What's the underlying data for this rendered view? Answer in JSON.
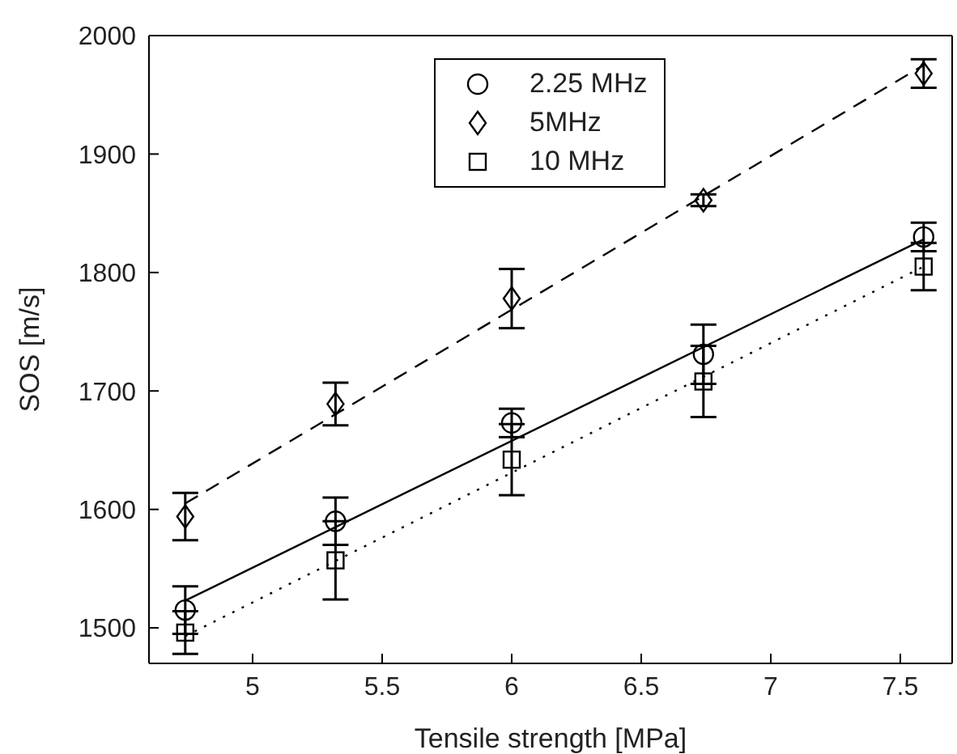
{
  "chart_data": {
    "type": "scatter",
    "xlabel": "Tensile strength [MPa]",
    "ylabel": "SOS [m/s]",
    "xlim": [
      4.6,
      7.7
    ],
    "ylim": [
      1470,
      2000
    ],
    "xticks": [
      5,
      5.5,
      6,
      6.5,
      7,
      7.5
    ],
    "yticks": [
      1500,
      1600,
      1700,
      1800,
      1900,
      2000
    ],
    "legend": "top",
    "series": [
      {
        "name": "2.25 MHz",
        "marker": "circle",
        "color": "#000000",
        "x": [
          4.74,
          5.32,
          6.0,
          6.74,
          7.59
        ],
        "values": [
          1515,
          1590,
          1673,
          1731,
          1830
        ],
        "errors": [
          20,
          20,
          12,
          25,
          12
        ]
      },
      {
        "name": "5MHz",
        "marker": "diamond",
        "color": "#000000",
        "x": [
          4.74,
          5.32,
          6.0,
          6.74,
          7.59
        ],
        "values": [
          1594,
          1689,
          1778,
          1861,
          1968
        ],
        "errors": [
          20,
          18,
          25,
          5,
          12
        ]
      },
      {
        "name": "10 MHz",
        "marker": "square",
        "color": "#000000",
        "x": [
          4.74,
          5.32,
          6.0,
          6.74,
          7.59
        ],
        "values": [
          1496,
          1557,
          1642,
          1708,
          1805
        ],
        "errors": [
          18,
          33,
          30,
          30,
          20
        ]
      },
      {
        "type": "line",
        "line_style": "solid",
        "color": "#000000",
        "x": [
          4.74,
          7.59
        ],
        "values": [
          1523,
          1828
        ]
      },
      {
        "type": "line",
        "line_style": "dashed",
        "color": "#000000",
        "x": [
          4.74,
          7.59
        ],
        "values": [
          1605,
          1975
        ]
      },
      {
        "type": "line",
        "line_style": "dotted",
        "color": "#000000",
        "x": [
          4.74,
          7.59
        ],
        "values": [
          1493,
          1805
        ]
      }
    ]
  }
}
